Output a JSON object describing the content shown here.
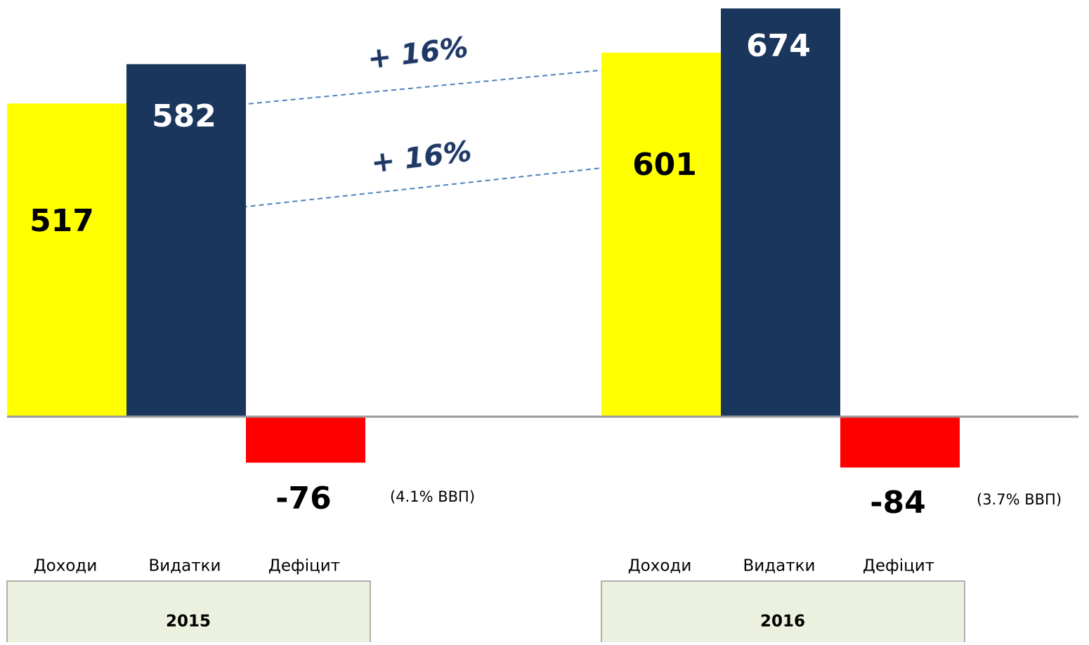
{
  "chart_data": {
    "type": "bar",
    "categories": [
      "Доходи",
      "Видатки",
      "Дефіцит"
    ],
    "colors": [
      "#ffff00",
      "#1a365d",
      "#ff0000"
    ],
    "series": [
      {
        "name": "2015",
        "values": [
          517,
          582,
          -76
        ],
        "note": "(4.1% ВВП)"
      },
      {
        "name": "2016",
        "values": [
          601,
          674,
          -84
        ],
        "note": "(3.7% ВВП)"
      }
    ],
    "annotations": [
      "+ 16%",
      "+ 16%"
    ]
  }
}
